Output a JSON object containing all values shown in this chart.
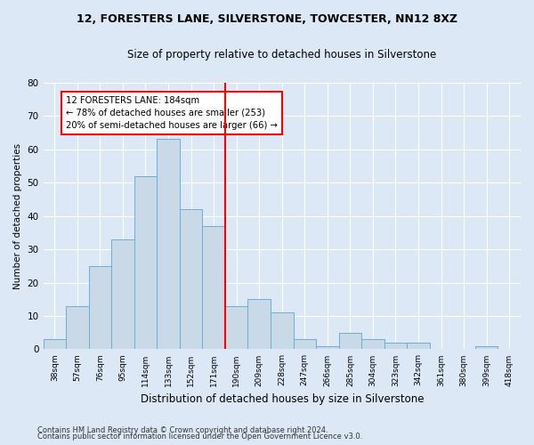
{
  "title1": "12, FORESTERS LANE, SILVERSTONE, TOWCESTER, NN12 8XZ",
  "title2": "Size of property relative to detached houses in Silverstone",
  "xlabel": "Distribution of detached houses by size in Silverstone",
  "ylabel": "Number of detached properties",
  "categories": [
    "38sqm",
    "57sqm",
    "76sqm",
    "95sqm",
    "114sqm",
    "133sqm",
    "152sqm",
    "171sqm",
    "190sqm",
    "209sqm",
    "228sqm",
    "247sqm",
    "266sqm",
    "285sqm",
    "304sqm",
    "323sqm",
    "342sqm",
    "361sqm",
    "380sqm",
    "399sqm",
    "418sqm"
  ],
  "values": [
    3,
    13,
    25,
    33,
    52,
    63,
    42,
    37,
    13,
    15,
    11,
    3,
    1,
    5,
    3,
    2,
    2,
    0,
    0,
    1,
    0
  ],
  "bar_color": "#c9d9e8",
  "bar_edge_color": "#6baed6",
  "line_color": "red",
  "annotation_text": "12 FORESTERS LANE: 184sqm\n← 78% of detached houses are smaller (253)\n20% of semi-detached houses are larger (66) →",
  "annotation_box_color": "white",
  "annotation_box_edge": "red",
  "ylim": [
    0,
    80
  ],
  "yticks": [
    0,
    10,
    20,
    30,
    40,
    50,
    60,
    70,
    80
  ],
  "footer1": "Contains HM Land Registry data © Crown copyright and database right 2024.",
  "footer2": "Contains public sector information licensed under the Open Government Licence v3.0.",
  "bg_color": "#dce8f5",
  "plot_bg_color": "#dce8f5"
}
